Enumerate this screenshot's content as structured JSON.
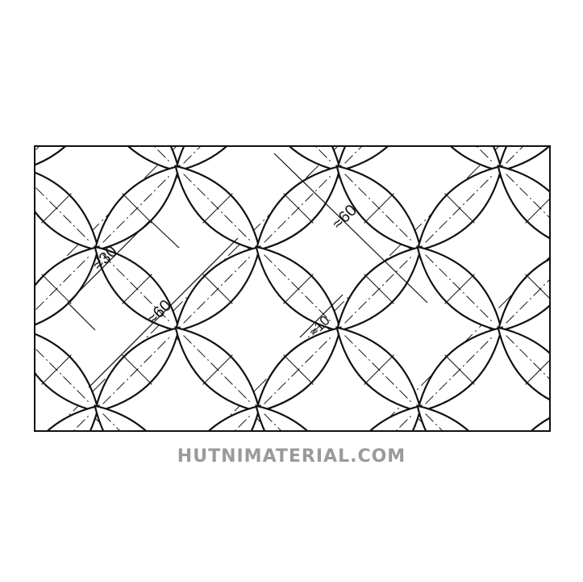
{
  "drawing": {
    "dimensions": {
      "lens_length": "≈30",
      "pitch_a": "≈60",
      "pitch_b": "≈60",
      "lens_width": "≈10"
    },
    "line_color": "#111111"
  },
  "watermark": "HUTNIMATERIAL.COM"
}
